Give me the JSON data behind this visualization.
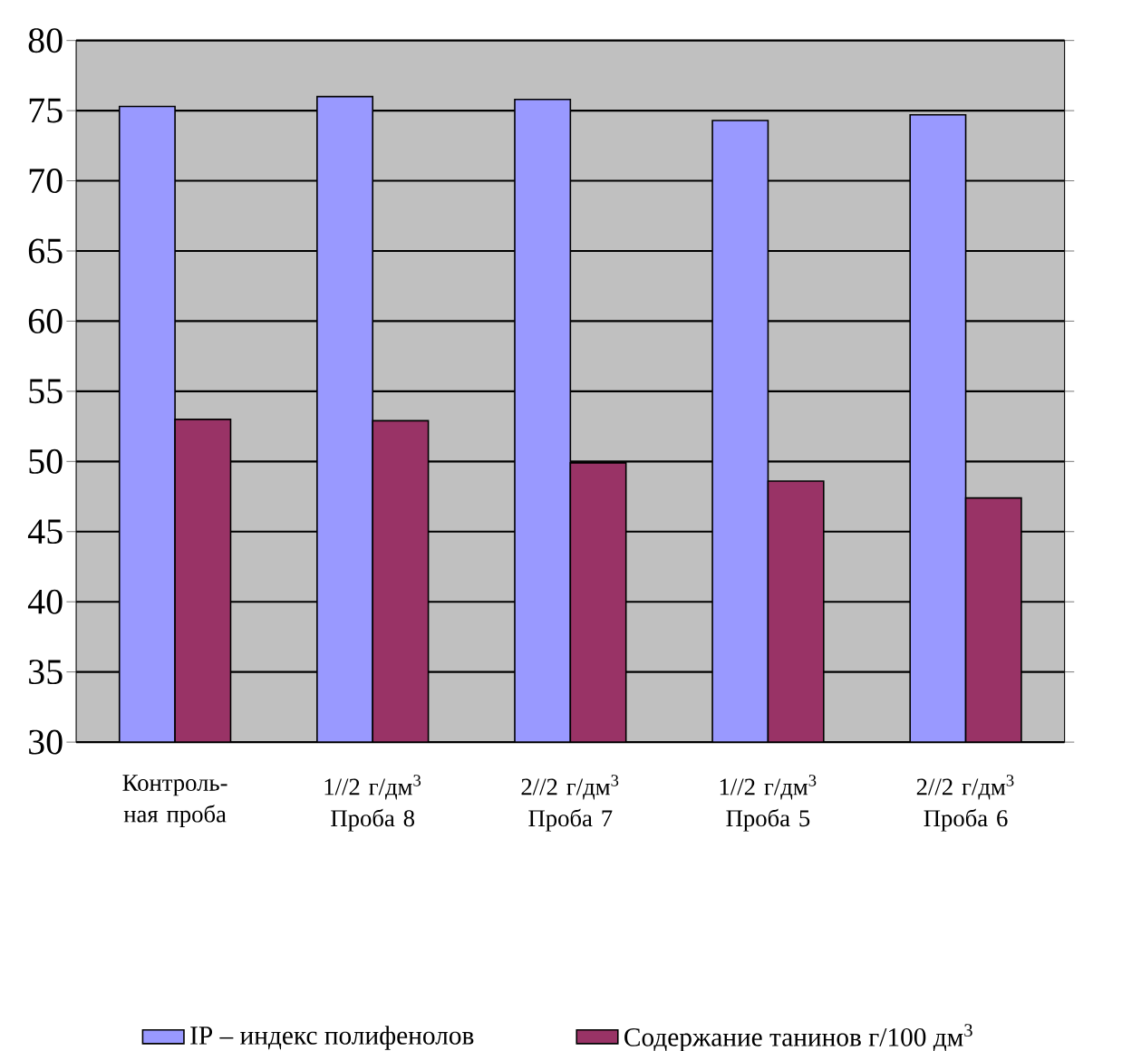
{
  "chart_data": {
    "type": "bar",
    "categories": [
      "Контроль-ная проба",
      "1//2 г/дм$^{3}$ Проба 8",
      "2//2 г/дм$^{3}$ Проба 7",
      "1//2 г/дм$^{3}$ Проба 5",
      "2//2 г/дм$^{3}$ Проба 6"
    ],
    "series": [
      {
        "name": "IP – индекс полифенолов",
        "color": "#9999ff",
        "values": [
          75.3,
          76.0,
          75.8,
          74.3,
          74.7
        ]
      },
      {
        "name": "Содержание танинов г/100 дм$^{3}$",
        "color": "#993366",
        "values": [
          53.0,
          52.9,
          49.9,
          48.6,
          47.4
        ]
      }
    ],
    "ylim": [
      30,
      80
    ],
    "yticks": [
      30,
      35,
      40,
      45,
      50,
      55,
      60,
      65,
      70,
      75,
      80
    ],
    "grid": "y",
    "legend": "bottom"
  }
}
